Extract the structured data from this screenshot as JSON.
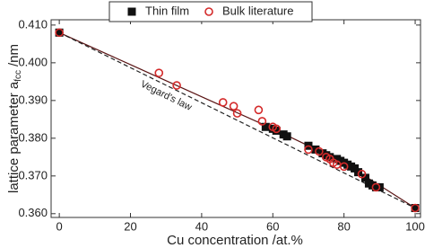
{
  "chart_data": {
    "type": "scatter",
    "xlabel": "Cu concentration /at.%",
    "ylabel": {
      "text": "lattice parameter a",
      "sub": "fcc",
      "unit": "/nm"
    },
    "xlim": [
      -2.3,
      101.5
    ],
    "ylim": [
      0.359,
      0.4114
    ],
    "xticks": [
      0,
      20,
      40,
      60,
      80,
      100
    ],
    "yticks": [
      {
        "value": 0.36,
        "label": "0.360"
      },
      {
        "value": 0.37,
        "label": "0.370"
      },
      {
        "value": 0.38,
        "label": "0.380"
      },
      {
        "value": 0.39,
        "label": "0.390"
      },
      {
        "value": 0.4,
        "label": "0.400"
      },
      {
        "value": 0.41,
        "label": "0.410"
      }
    ],
    "legend": "top",
    "series": [
      {
        "name": "Thin film",
        "marker": "square",
        "color": "#111111",
        "x": [
          0,
          58,
          60,
          61,
          63,
          64,
          70,
          72,
          74,
          75,
          76,
          78,
          79,
          80,
          81,
          82,
          83,
          84,
          86,
          87,
          88,
          89,
          90,
          100
        ],
        "values": [
          0.408,
          0.383,
          0.3825,
          0.382,
          0.381,
          0.3805,
          0.378,
          0.377,
          0.376,
          0.3755,
          0.375,
          0.3745,
          0.374,
          0.3735,
          0.373,
          0.3725,
          0.372,
          0.371,
          0.3695,
          0.368,
          0.3675,
          0.367,
          0.367,
          0.3615
        ]
      },
      {
        "name": "Bulk literature",
        "marker": "circle",
        "color": "#d42a2a",
        "x": [
          0,
          28,
          33,
          46,
          49,
          50,
          56,
          57,
          60,
          61,
          70,
          73,
          75,
          76,
          77,
          78,
          80,
          85,
          89,
          100
        ],
        "values": [
          0.408,
          0.3973,
          0.394,
          0.3895,
          0.3885,
          0.3866,
          0.3875,
          0.3845,
          0.383,
          0.3825,
          0.377,
          0.3765,
          0.375,
          0.3745,
          0.3735,
          0.373,
          0.3725,
          0.3705,
          0.367,
          0.3615
        ]
      }
    ],
    "lines": [
      {
        "style": "solid",
        "color": "#5a1515",
        "x": [
          0,
          20,
          40,
          60,
          80,
          100
        ],
        "values": [
          0.408,
          0.3995,
          0.391,
          0.3825,
          0.3735,
          0.3615
        ]
      },
      {
        "style": "dashed",
        "color": "#222222",
        "label": "Vegard's law",
        "label_at": [
          30,
          0.3912
        ],
        "x": [
          0,
          100
        ],
        "values": [
          0.408,
          0.3615
        ]
      }
    ]
  }
}
